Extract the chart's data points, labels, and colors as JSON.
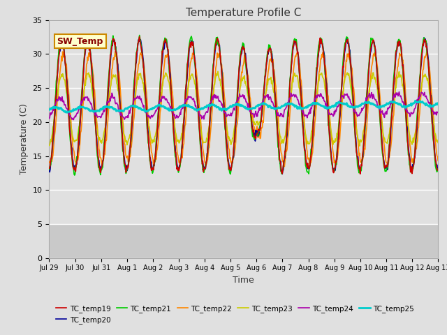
{
  "title": "Temperature Profile C",
  "xlabel": "Time",
  "ylabel": "Temperature (C)",
  "ylim": [
    0,
    35
  ],
  "yticks": [
    0,
    5,
    10,
    15,
    20,
    25,
    30,
    35
  ],
  "plot_bg_color": "#e0e0e0",
  "grid_color": "#ffffff",
  "series": [
    {
      "name": "TC_temp19",
      "color": "#cc0000",
      "lw": 1.2,
      "zorder": 5
    },
    {
      "name": "TC_temp20",
      "color": "#000099",
      "lw": 1.2,
      "zorder": 4
    },
    {
      "name": "TC_temp21",
      "color": "#00cc00",
      "lw": 1.2,
      "zorder": 4
    },
    {
      "name": "TC_temp22",
      "color": "#ff8800",
      "lw": 1.2,
      "zorder": 3
    },
    {
      "name": "TC_temp23",
      "color": "#cccc00",
      "lw": 1.2,
      "zorder": 3
    },
    {
      "name": "TC_temp24",
      "color": "#aa00aa",
      "lw": 1.2,
      "zorder": 6
    },
    {
      "name": "TC_temp25",
      "color": "#00cccc",
      "lw": 2.0,
      "zorder": 7
    }
  ],
  "sw_temp_box": {
    "text": "SW_Temp",
    "facecolor": "#ffffcc",
    "edgecolor": "#cc8800",
    "textcolor": "#880000"
  },
  "xtick_labels": [
    "Jul 29",
    "Jul 30",
    "Jul 31",
    "Aug 1",
    "Aug 2",
    "Aug 3",
    "Aug 4",
    "Aug 5",
    "Aug 6",
    "Aug 7",
    "Aug 8",
    "Aug 9",
    "Aug 10",
    "Aug 11",
    "Aug 12",
    "Aug 13"
  ],
  "num_days": 15,
  "points_per_day": 48
}
